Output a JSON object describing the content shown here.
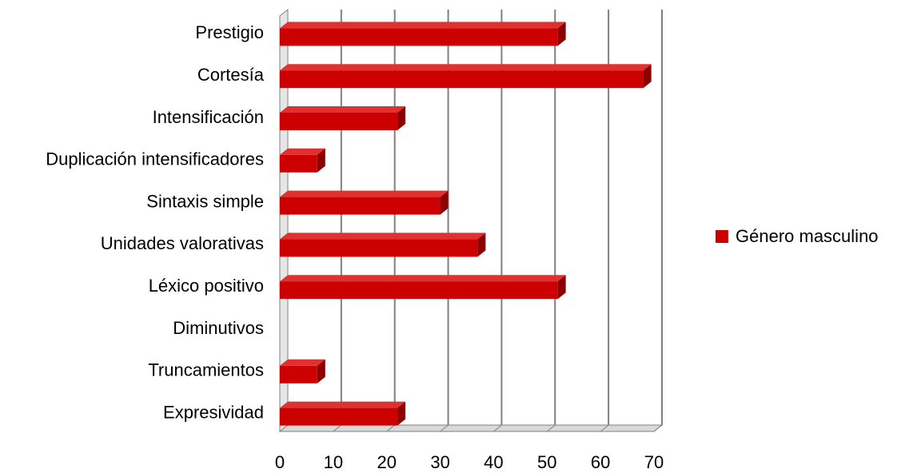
{
  "chart_data": {
    "type": "bar",
    "orientation": "horizontal",
    "style": "3d",
    "categories": [
      "Prestigio",
      "Cortesía",
      "Intensificación",
      "Duplicación intensificadores",
      "Sintaxis simple",
      "Unidades valorativas",
      "Léxico positivo",
      "Diminutivos",
      "Truncamientos",
      "Expresividad"
    ],
    "series": [
      {
        "name": "Género masculino",
        "color": "#cc0000",
        "values": [
          52,
          68,
          22,
          7,
          30,
          37,
          52,
          0,
          7,
          22
        ]
      }
    ],
    "xlim": [
      0,
      70
    ],
    "xticks": [
      0,
      10,
      20,
      30,
      40,
      50,
      60,
      70
    ],
    "grid": true,
    "legend_position": "right",
    "title": "",
    "xlabel": "",
    "ylabel": ""
  }
}
